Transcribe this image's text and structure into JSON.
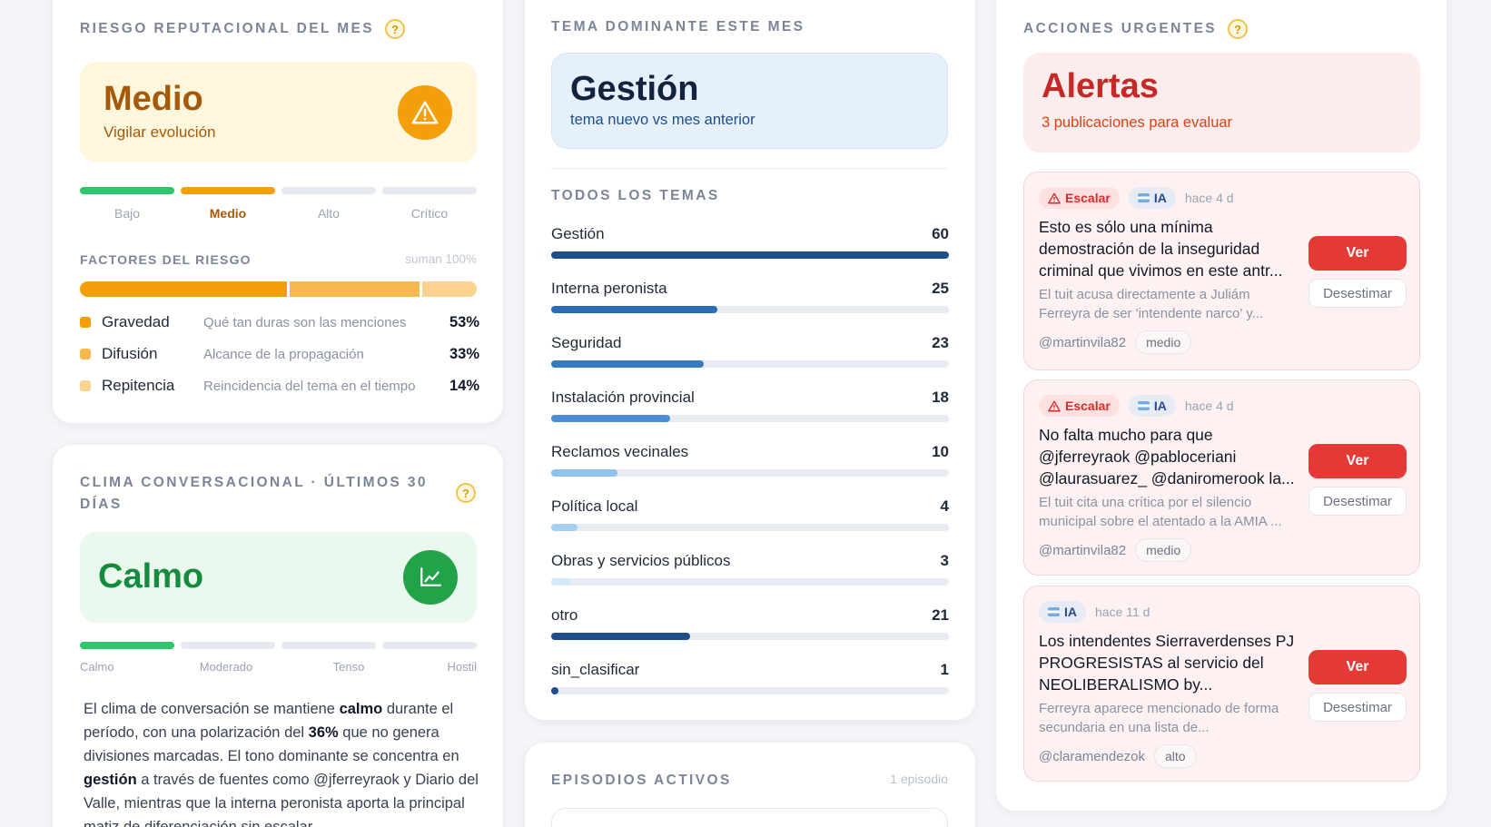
{
  "risk": {
    "title": "Riesgo reputacional del mes",
    "help": "?",
    "level": "Medio",
    "subtitle": "Vigilar evolución",
    "levels": [
      "Bajo",
      "Medio",
      "Alto",
      "Crítico"
    ],
    "factors_title": "Factores del riesgo",
    "factors_note": "suman 100%",
    "factors": [
      {
        "name": "Gravedad",
        "desc": "Qué tan duras son las menciones",
        "pct": "53%",
        "value": 53,
        "color": "#f59e0b"
      },
      {
        "name": "Difusión",
        "desc": "Alcance de la propagación",
        "pct": "33%",
        "value": 33,
        "color": "#f7b84d"
      },
      {
        "name": "Repitencia",
        "desc": "Reincidencia del tema en el tiempo",
        "pct": "14%",
        "value": 14,
        "color": "#fbd28e"
      }
    ]
  },
  "climate": {
    "title": "Clima conversacional · últimos 30 días",
    "help": "?",
    "level": "Calmo",
    "levels": [
      "Calmo",
      "Moderado",
      "Tenso",
      "Hostil"
    ],
    "text_1": "El clima de conversación se mantiene ",
    "text_b1": "calmo",
    "text_2": " durante el período, con una polarización del ",
    "text_b2": "36%",
    "text_3": " que no genera divisiones marcadas. El tono dominante se concentra en ",
    "text_b3": "gestión",
    "text_4": " a través de fuentes como @jferreyraok y Diario del Valle, mientras que la interna peronista aporta la principal matiz de diferenciación sin escalar."
  },
  "topic": {
    "title": "Tema dominante este mes",
    "name": "Gestión",
    "subtitle": "tema nuevo vs mes anterior",
    "all_title": "Todos los temas",
    "items": [
      {
        "name": "Gestión",
        "count": "60",
        "value": 60
      },
      {
        "name": "Interna peronista",
        "count": "25",
        "value": 25
      },
      {
        "name": "Seguridad",
        "count": "23",
        "value": 23
      },
      {
        "name": "Instalación provincial",
        "count": "18",
        "value": 18
      },
      {
        "name": "Reclamos vecinales",
        "count": "10",
        "value": 10
      },
      {
        "name": "Política local",
        "count": "4",
        "value": 4
      },
      {
        "name": "Obras y servicios públicos",
        "count": "3",
        "value": 3
      },
      {
        "name": "otro",
        "count": "21",
        "value": 21
      },
      {
        "name": "sin_clasificar",
        "count": "1",
        "value": 1
      }
    ],
    "max": 60
  },
  "episodes": {
    "title": "Episodios activos",
    "count": "1 episodio"
  },
  "actions": {
    "title": "Acciones urgentes",
    "help": "?",
    "headline": "Alertas",
    "subtitle": "3 publicaciones para evaluar",
    "ver_label": "Ver",
    "dismiss_label": "Desestimar",
    "escalate_label": "Escalar",
    "ia_label": "IA",
    "items": [
      {
        "escalate": true,
        "when": "hace 4 d",
        "title": "Esto es sólo una mínima demostración de la inseguridad criminal que vivimos en este antr...",
        "desc": "El tuit acusa directamente a Juliám Ferreyra de ser 'intendente narco' y...",
        "handle": "@martinvila82",
        "level": "medio"
      },
      {
        "escalate": true,
        "when": "hace 4 d",
        "title": "No falta mucho para que @jferreyraok @pabloceriani @laurasuarez_ @daniromerook la...",
        "desc": "El tuit cita una crítica por el silencio municipal sobre el atentado a la AMIA ...",
        "handle": "@martinvila82",
        "level": "medio"
      },
      {
        "escalate": false,
        "when": "hace 11 d",
        "title": "Los intendentes Sierraverdenses PJ PROGRESISTAS al servicio del NEOLIBERALISMO by...",
        "desc": "Ferreyra aparece mencionado de forma secundaria en una lista de...",
        "handle": "@claramendezok",
        "level": "alto"
      }
    ]
  },
  "colors": {
    "accent_orange": "#f59e0b",
    "accent_green": "#22a34a",
    "accent_red": "#e53935",
    "accent_navy": "#1e4e8c"
  }
}
